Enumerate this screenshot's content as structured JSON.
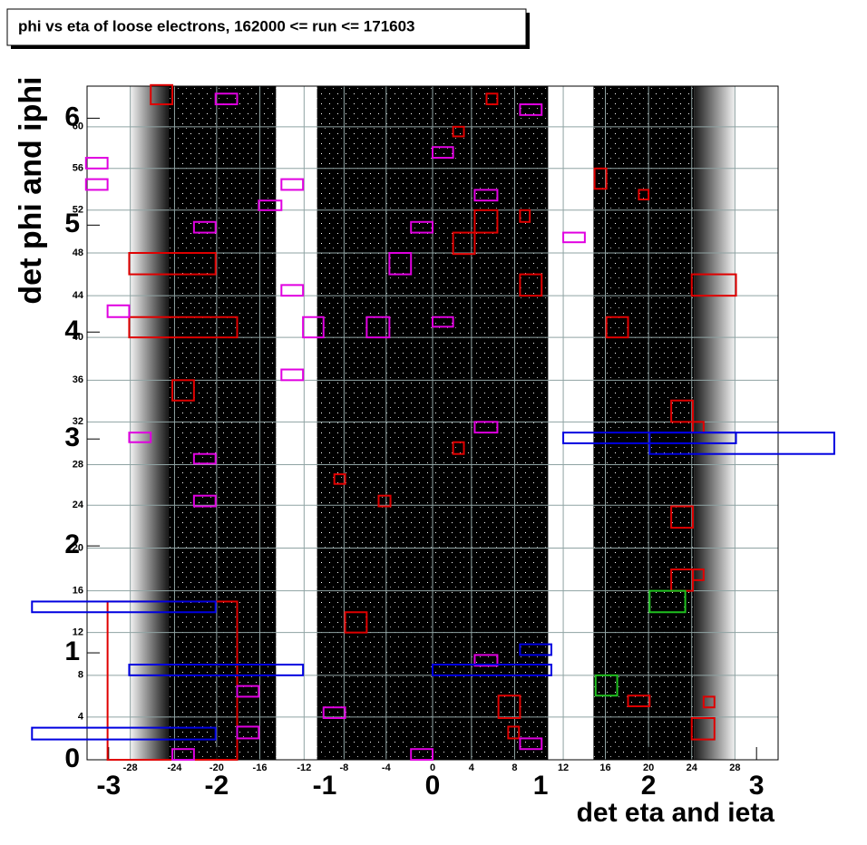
{
  "chart_data": {
    "type": "scatter",
    "title": "phi vs eta of loose electrons, 162000 <= run <= 171603",
    "xlabel": "det eta and ieta",
    "ylabel": "det phi and iphi",
    "xlim": [
      -3.2,
      3.2
    ],
    "ylim": [
      0,
      6.3
    ],
    "xticks": [
      -3,
      -2,
      -1,
      0,
      1,
      2,
      3
    ],
    "yticks": [
      0,
      1,
      2,
      3,
      4,
      5,
      6
    ],
    "ieta_ticks": [
      {
        "value": -2.8,
        "label": "-28"
      },
      {
        "value": -2.39,
        "label": "-24"
      },
      {
        "value": -2.0,
        "label": "-20"
      },
      {
        "value": -1.6,
        "label": "-16"
      },
      {
        "value": -1.19,
        "label": "-12"
      },
      {
        "value": -0.82,
        "label": "-8"
      },
      {
        "value": -0.43,
        "label": "-4"
      },
      {
        "value": 0,
        "label": "0"
      },
      {
        "value": 0.36,
        "label": "4"
      },
      {
        "value": 0.76,
        "label": "8"
      },
      {
        "value": 1.21,
        "label": "12"
      },
      {
        "value": 1.6,
        "label": "16"
      },
      {
        "value": 2.0,
        "label": "20"
      },
      {
        "value": 2.4,
        "label": "24"
      },
      {
        "value": 2.8,
        "label": "28"
      }
    ],
    "iphi_ticks": [
      {
        "value": 0.4,
        "label": "4"
      },
      {
        "value": 0.79,
        "label": "8"
      },
      {
        "value": 1.19,
        "label": "12"
      },
      {
        "value": 1.58,
        "label": "16"
      },
      {
        "value": 1.98,
        "label": "20"
      },
      {
        "value": 2.38,
        "label": "24"
      },
      {
        "value": 2.76,
        "label": "28"
      },
      {
        "value": 3.16,
        "label": "32"
      },
      {
        "value": 3.55,
        "label": "36"
      },
      {
        "value": 3.95,
        "label": "40"
      },
      {
        "value": 4.34,
        "label": "44"
      },
      {
        "value": 4.74,
        "label": "48"
      },
      {
        "value": 5.14,
        "label": "52"
      },
      {
        "value": 5.53,
        "label": "56"
      },
      {
        "value": 5.92,
        "label": "60"
      }
    ],
    "grid": true,
    "point_color": "#000000",
    "bands": [
      [
        -2.45,
        -1.45
      ],
      [
        -1.07,
        1.07
      ],
      [
        1.49,
        2.42
      ]
    ],
    "edge_bands": [
      [
        -2.8,
        -2.45
      ],
      [
        2.42,
        2.8
      ]
    ],
    "boxes": [
      {
        "color": "#e00000",
        "regions": [
          [
            -2.61,
            -2.41,
            6.13,
            6.31
          ],
          [
            0.5,
            0.6,
            6.13,
            6.23
          ],
          [
            0.19,
            0.29,
            5.83,
            5.92
          ],
          [
            1.5,
            1.61,
            5.34,
            5.53
          ],
          [
            1.91,
            2.0,
            5.24,
            5.33
          ],
          [
            0.81,
            0.9,
            5.03,
            5.14
          ],
          [
            0.39,
            0.6,
            4.93,
            5.14
          ],
          [
            0.19,
            0.39,
            4.73,
            4.93
          ],
          [
            -2.81,
            -2.01,
            4.54,
            4.74
          ],
          [
            0.81,
            1.01,
            4.34,
            4.54
          ],
          [
            2.4,
            2.81,
            4.34,
            4.54
          ],
          [
            -2.81,
            -1.81,
            3.95,
            4.14
          ],
          [
            1.61,
            1.81,
            3.95,
            4.14
          ],
          [
            -2.41,
            -2.21,
            3.36,
            3.55
          ],
          [
            2.21,
            2.41,
            3.16,
            3.36
          ],
          [
            2.41,
            2.51,
            3.06,
            3.16
          ],
          [
            0.19,
            0.29,
            2.86,
            2.97
          ],
          [
            -0.91,
            -0.81,
            2.58,
            2.67
          ],
          [
            -0.5,
            -0.39,
            2.37,
            2.47
          ],
          [
            2.21,
            2.41,
            2.17,
            2.37
          ],
          [
            2.21,
            2.41,
            1.58,
            1.78
          ],
          [
            2.41,
            2.51,
            1.68,
            1.78
          ],
          [
            -0.81,
            -0.61,
            1.19,
            1.38
          ],
          [
            -3.01,
            -1.81,
            0,
            1.48
          ],
          [
            0.61,
            0.81,
            0.39,
            0.6
          ],
          [
            1.81,
            2.01,
            0.5,
            0.6
          ],
          [
            2.51,
            2.61,
            0.49,
            0.59
          ],
          [
            0.7,
            0.8,
            0.2,
            0.31
          ],
          [
            2.4,
            2.61,
            0.19,
            0.39
          ]
        ]
      },
      {
        "color": "#e000e0",
        "regions": [
          [
            -2.01,
            -1.81,
            6.13,
            6.23
          ],
          [
            0.81,
            1.01,
            6.03,
            6.13
          ],
          [
            0,
            0.19,
            5.63,
            5.73
          ],
          [
            -3.21,
            -3.01,
            5.53,
            5.63
          ],
          [
            -3.21,
            -3.01,
            5.33,
            5.43
          ],
          [
            -1.4,
            -1.2,
            5.33,
            5.43
          ],
          [
            0.39,
            0.6,
            5.23,
            5.33
          ],
          [
            -1.61,
            -1.4,
            5.14,
            5.23
          ],
          [
            -2.21,
            -2.01,
            4.93,
            5.03
          ],
          [
            -0.2,
            0,
            4.93,
            5.03
          ],
          [
            1.21,
            1.41,
            4.84,
            4.93
          ],
          [
            -0.4,
            -0.2,
            4.54,
            4.74
          ],
          [
            -1.4,
            -1.2,
            4.34,
            4.44
          ],
          [
            -3.01,
            -2.81,
            4.14,
            4.25
          ],
          [
            -1.2,
            -1.01,
            3.95,
            4.14
          ],
          [
            -0.61,
            -0.4,
            3.95,
            4.14
          ],
          [
            0,
            0.19,
            4.05,
            4.14
          ],
          [
            -1.4,
            -1.2,
            3.55,
            3.65
          ],
          [
            0.39,
            0.6,
            3.06,
            3.16
          ],
          [
            -2.81,
            -2.61,
            2.97,
            3.06
          ],
          [
            -2.21,
            -2.01,
            2.77,
            2.86
          ],
          [
            -2.21,
            -2.01,
            2.37,
            2.47
          ],
          [
            0.39,
            0.6,
            0.88,
            0.98
          ],
          [
            -1.81,
            -1.61,
            0.59,
            0.69
          ],
          [
            -1.01,
            -0.81,
            0.39,
            0.49
          ],
          [
            -1.81,
            -1.61,
            0.2,
            0.31
          ],
          [
            0.81,
            1.01,
            0.1,
            0.2
          ],
          [
            -2.41,
            -2.21,
            0,
            0.1
          ],
          [
            -0.2,
            0,
            0,
            0.1
          ]
        ]
      },
      {
        "color": "#0000e0",
        "regions": [
          [
            1.21,
            2.81,
            2.96,
            3.06
          ],
          [
            2.01,
            3.72,
            2.86,
            3.06
          ],
          [
            -3.71,
            -2.01,
            1.38,
            1.48
          ],
          [
            0.81,
            1.1,
            0.98,
            1.08
          ],
          [
            -2.81,
            -1.2,
            0.79,
            0.89
          ],
          [
            0,
            1.1,
            0.79,
            0.89
          ],
          [
            -3.71,
            -2.01,
            0.19,
            0.3
          ]
        ]
      },
      {
        "color": "#20c020",
        "regions": [
          [
            2.01,
            2.34,
            1.38,
            1.58
          ],
          [
            1.51,
            1.71,
            0.6,
            0.79
          ]
        ]
      }
    ]
  }
}
